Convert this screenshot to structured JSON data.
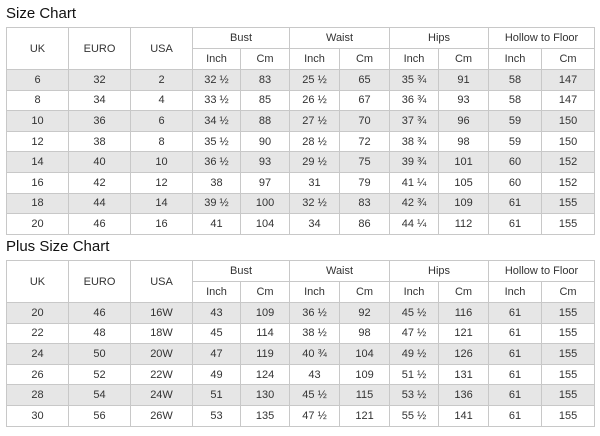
{
  "size_chart": {
    "title": "Size Chart",
    "headers": {
      "uk": "UK",
      "euro": "EURO",
      "usa": "USA",
      "bust": "Bust",
      "waist": "Waist",
      "hips": "Hips",
      "hollow": "Hollow to Floor",
      "inch": "Inch",
      "cm": "Cm"
    },
    "rows": [
      [
        "6",
        "32",
        "2",
        "32 ½",
        "83",
        "25 ½",
        "65",
        "35 ¾",
        "91",
        "58",
        "147"
      ],
      [
        "8",
        "34",
        "4",
        "33 ½",
        "85",
        "26 ½",
        "67",
        "36 ¾",
        "93",
        "58",
        "147"
      ],
      [
        "10",
        "36",
        "6",
        "34 ½",
        "88",
        "27 ½",
        "70",
        "37 ¾",
        "96",
        "59",
        "150"
      ],
      [
        "12",
        "38",
        "8",
        "35 ½",
        "90",
        "28 ½",
        "72",
        "38 ¾",
        "98",
        "59",
        "150"
      ],
      [
        "14",
        "40",
        "10",
        "36 ½",
        "93",
        "29 ½",
        "75",
        "39 ¾",
        "101",
        "60",
        "152"
      ],
      [
        "16",
        "42",
        "12",
        "38",
        "97",
        "31",
        "79",
        "41 ¼",
        "105",
        "60",
        "152"
      ],
      [
        "18",
        "44",
        "14",
        "39 ½",
        "100",
        "32 ½",
        "83",
        "42 ¾",
        "109",
        "61",
        "155"
      ],
      [
        "20",
        "46",
        "16",
        "41",
        "104",
        "34",
        "86",
        "44 ¼",
        "112",
        "61",
        "155"
      ]
    ]
  },
  "plus_size_chart": {
    "title": "Plus Size Chart",
    "headers": {
      "uk": "UK",
      "euro": "EURO",
      "usa": "USA",
      "bust": "Bust",
      "waist": "Waist",
      "hips": "Hips",
      "hollow": "Hollow to Floor",
      "inch": "Inch",
      "cm": "Cm"
    },
    "rows": [
      [
        "20",
        "46",
        "16W",
        "43",
        "109",
        "36 ½",
        "92",
        "45 ½",
        "116",
        "61",
        "155"
      ],
      [
        "22",
        "48",
        "18W",
        "45",
        "114",
        "38 ½",
        "98",
        "47 ½",
        "121",
        "61",
        "155"
      ],
      [
        "24",
        "50",
        "20W",
        "47",
        "119",
        "40 ¾",
        "104",
        "49 ½",
        "126",
        "61",
        "155"
      ],
      [
        "26",
        "52",
        "22W",
        "49",
        "124",
        "43",
        "109",
        "51 ½",
        "131",
        "61",
        "155"
      ],
      [
        "28",
        "54",
        "24W",
        "51",
        "130",
        "45 ½",
        "115",
        "53 ½",
        "136",
        "61",
        "155"
      ],
      [
        "30",
        "56",
        "26W",
        "53",
        "135",
        "47 ½",
        "121",
        "55 ½",
        "141",
        "61",
        "155"
      ]
    ]
  }
}
